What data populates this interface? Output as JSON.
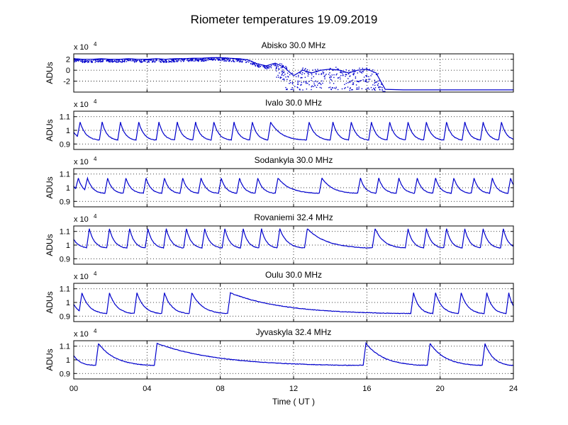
{
  "title": "Riometer temperatures 19.09.2019",
  "colors": {
    "trace": "#0000cc",
    "grid": "#000000",
    "axes": "#000000",
    "background": "#ffffff"
  },
  "chart_data": [
    {
      "type": "line",
      "title": "Abisko 30.0 MHz",
      "ylabel": "ADUs",
      "multiplier": "x 10",
      "multiplier_exp": "4",
      "xlim": [
        0,
        24
      ],
      "ylim": [
        -4,
        3
      ],
      "yticks": [
        2,
        0,
        -2
      ],
      "xticks": [],
      "xticklabels": [],
      "grid": true,
      "style": "scatter-noisy",
      "x": [
        0,
        0.5,
        1.0,
        1.5,
        2.0,
        2.5,
        3.0,
        3.5,
        4.0,
        4.5,
        5.0,
        5.5,
        6.0,
        6.5,
        7.0,
        7.5,
        8.0,
        8.5,
        9.0,
        9.5,
        10.0,
        10.5,
        11.0,
        11.5,
        12.0,
        12.5,
        13.0,
        13.5,
        14.0,
        14.5,
        15.0,
        15.5,
        16.0,
        16.5,
        17.0,
        18.0,
        19.0,
        20.0,
        21.0,
        22.0,
        23.0,
        24.0
      ],
      "values": [
        2.1,
        2.0,
        2.0,
        2.1,
        2.0,
        2.0,
        2.1,
        2.0,
        2.0,
        2.1,
        2.0,
        2.1,
        2.1,
        2.2,
        2.2,
        2.3,
        2.3,
        2.2,
        2.1,
        1.9,
        1.2,
        0.8,
        1.3,
        0.5,
        -1.0,
        0.0,
        -0.5,
        0.0,
        0.2,
        0.0,
        -0.5,
        0.0,
        0.2,
        -0.5,
        -3.5,
        -3.6,
        -3.6,
        -3.6,
        -3.6,
        -3.6,
        -3.6,
        -3.6
      ]
    },
    {
      "type": "line",
      "title": "Ivalo 30.0 MHz",
      "ylabel": "ADUs",
      "multiplier": "x 10",
      "multiplier_exp": "4",
      "xlim": [
        0,
        24
      ],
      "ylim": [
        0.86,
        1.14
      ],
      "yticks": [
        1.1,
        1,
        0.9
      ],
      "yticklabels": [
        "1.1",
        "1",
        "0.9"
      ],
      "xticks": [],
      "xticklabels": [],
      "grid": true,
      "style": "sawtooth",
      "peaks": [
        0.2,
        1.4,
        2.4,
        3.4,
        4.5,
        5.5,
        6.5,
        7.5,
        8.6,
        9.6,
        10.6,
        12.7,
        14.0,
        15.0,
        16.1,
        17.1,
        18.1,
        19.1,
        20.2,
        21.2,
        22.2,
        23.2
      ],
      "peak_value": 1.06,
      "min_value": 0.93
    },
    {
      "type": "line",
      "title": "Sodankyla 30.0 MHz",
      "ylabel": "ADUs",
      "multiplier": "x 10",
      "multiplier_exp": "4",
      "xlim": [
        0,
        24
      ],
      "ylim": [
        0.86,
        1.14
      ],
      "yticks": [
        1.1,
        1,
        0.9
      ],
      "yticklabels": [
        "1.1",
        "1",
        "0.9"
      ],
      "xticks": [],
      "xticklabels": [],
      "grid": true,
      "style": "sawtooth",
      "peaks": [
        0.1,
        0.6,
        1.7,
        2.7,
        3.8,
        4.8,
        5.8,
        6.8,
        7.9,
        8.9,
        9.9,
        11.0,
        13.4,
        15.5,
        16.5,
        17.6,
        18.6,
        19.6,
        20.6,
        21.7,
        22.7,
        23.7
      ],
      "peak_value": 1.07,
      "min_value": 0.96
    },
    {
      "type": "line",
      "title": "Rovaniemi 32.4 MHz",
      "ylabel": "ADUs",
      "multiplier": "x 10",
      "multiplier_exp": "4",
      "xlim": [
        0,
        24
      ],
      "ylim": [
        0.86,
        1.14
      ],
      "yticks": [
        1.1,
        1,
        0.9
      ],
      "yticklabels": [
        "1.1",
        "1",
        "0.9"
      ],
      "xticks": [],
      "xticklabels": [],
      "grid": true,
      "style": "sawtooth",
      "peaks": [
        0.7,
        1.8,
        2.9,
        3.9,
        4.9,
        6.0,
        7.0,
        8.1,
        9.1,
        10.1,
        11.1,
        12.6,
        16.3,
        18.1,
        19.1,
        20.2,
        21.2,
        22.2,
        23.3
      ],
      "peak_value": 1.12,
      "min_value": 0.98
    },
    {
      "type": "line",
      "title": "Oulu 30.0 MHz",
      "ylabel": "ADUs",
      "multiplier": "x 10",
      "multiplier_exp": "4",
      "xlim": [
        0,
        24
      ],
      "ylim": [
        0.86,
        1.14
      ],
      "yticks": [
        1.1,
        1,
        0.9
      ],
      "yticklabels": [
        "1.1",
        "1",
        "0.9"
      ],
      "xticks": [],
      "xticklabels": [],
      "grid": true,
      "style": "sawtooth",
      "peaks": [
        0.3,
        1.8,
        3.3,
        4.8,
        6.3,
        8.4,
        18.4,
        19.6,
        21.0,
        22.4,
        23.6
      ],
      "peak_value": 1.07,
      "min_value": 0.92
    },
    {
      "type": "line",
      "title": "Jyvaskyla 32.4 MHz",
      "ylabel": "ADUs",
      "multiplier": "x 10",
      "multiplier_exp": "4",
      "xlim": [
        0,
        24
      ],
      "ylim": [
        0.86,
        1.14
      ],
      "yticks": [
        1.1,
        1,
        0.9
      ],
      "yticklabels": [
        "1.1",
        "1",
        "0.9"
      ],
      "xticks": [
        0,
        4,
        8,
        12,
        16,
        20,
        24
      ],
      "xticklabels": [
        "00",
        "04",
        "08",
        "12",
        "16",
        "20",
        "24"
      ],
      "xlabel": "Time ( UT )",
      "grid": true,
      "style": "sawtooth",
      "peaks": [
        1.2,
        4.4,
        15.8,
        19.3,
        22.3
      ],
      "peak_value": 1.12,
      "min_value": 0.96
    }
  ]
}
